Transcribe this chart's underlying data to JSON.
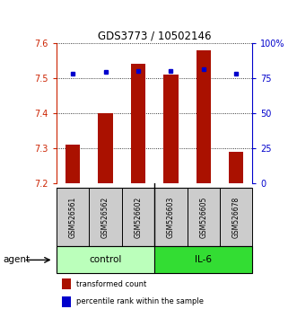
{
  "title": "GDS3773 / 10502146",
  "samples": [
    "GSM526561",
    "GSM526562",
    "GSM526602",
    "GSM526603",
    "GSM526605",
    "GSM526678"
  ],
  "red_values": [
    7.31,
    7.4,
    7.54,
    7.51,
    7.58,
    7.29
  ],
  "blue_values": [
    78,
    79,
    80,
    80,
    81,
    78
  ],
  "ymin": 7.2,
  "ymax": 7.6,
  "yticks": [
    7.2,
    7.3,
    7.4,
    7.5,
    7.6
  ],
  "y2min": 0,
  "y2max": 100,
  "y2ticks": [
    0,
    25,
    50,
    75,
    100
  ],
  "y2ticklabels": [
    "0",
    "25",
    "50",
    "75",
    "100%"
  ],
  "bar_color": "#aa1100",
  "dot_color": "#0000cc",
  "bar_width": 0.45,
  "groups": [
    {
      "label": "control",
      "color": "#bbffbb"
    },
    {
      "label": "IL-6",
      "color": "#33dd33"
    }
  ],
  "agent_label": "agent",
  "legend_red": "transformed count",
  "legend_blue": "percentile rank within the sample",
  "tick_color_left": "#cc2200",
  "tick_color_right": "#0000cc",
  "sample_box_color": "#cccccc",
  "control_indices": [
    0,
    1,
    2
  ],
  "il6_indices": [
    3,
    4,
    5
  ]
}
